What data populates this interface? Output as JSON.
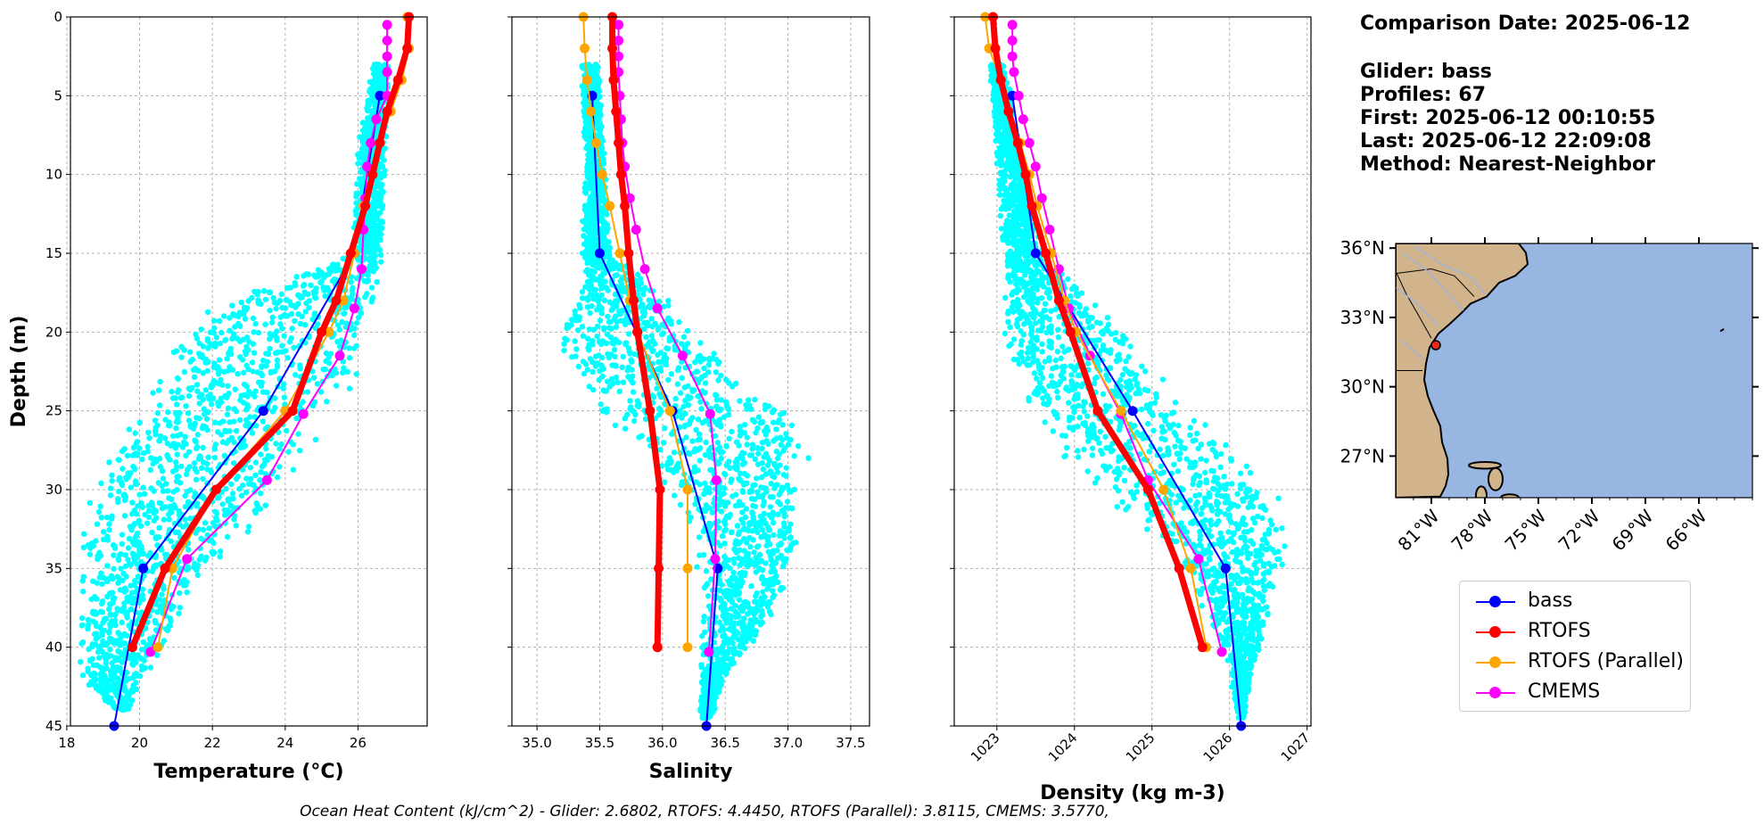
{
  "info": {
    "comparison": "Comparison Date: 2025-06-12",
    "glider": "Glider: bass",
    "profiles": "Profiles: 67",
    "first": "First: 2025-06-12 00:10:55",
    "last": "Last: 2025-06-12 22:09:08",
    "method": "Method: Nearest-Neighbor"
  },
  "footer": "Ocean Heat Content (kJ/cm^2) - Glider: 2.6802,  RTOFS: 4.4450,  RTOFS (Parallel): 3.8115,  CMEMS: 3.5770,",
  "colors": {
    "scatter": "#00ffff",
    "grid": "#b0b0b0",
    "ocean": "#97b6e1",
    "land": "#d2b48c",
    "river": "#97b6e1",
    "glider_marker": "#e8281c"
  },
  "chart_data": [
    {
      "type": "line",
      "xlabel": "Temperature (°C)",
      "ylabel": "Depth (m)",
      "xlim": [
        18.1,
        27.9
      ],
      "ylim": [
        45,
        0
      ],
      "xticks": [
        18,
        20,
        22,
        24,
        26
      ],
      "yticks": [
        0,
        5,
        10,
        15,
        20,
        25,
        30,
        35,
        40,
        45
      ],
      "grid": true,
      "scatter_band": [
        [
          3,
          26.4,
          26.9
        ],
        [
          8,
          26.0,
          26.8
        ],
        [
          15,
          25.8,
          26.7
        ],
        [
          19,
          21.3,
          26.6
        ],
        [
          22,
          20.3,
          26.3
        ],
        [
          25,
          20.0,
          25.6
        ],
        [
          28,
          18.8,
          24.6
        ],
        [
          31,
          18.4,
          24.0
        ],
        [
          34,
          18.3,
          22.6
        ],
        [
          37,
          18.3,
          21.3
        ],
        [
          40,
          18.3,
          20.8
        ],
        [
          42,
          18.3,
          20.2
        ],
        [
          44,
          19.3,
          19.7
        ]
      ],
      "series": [
        {
          "name": "bass",
          "color": "#0000ff",
          "lw": 2,
          "depth": [
            5,
            15,
            25,
            35,
            45
          ],
          "values": [
            26.6,
            25.9,
            23.4,
            20.1,
            19.3
          ]
        },
        {
          "name": "RTOFS",
          "color": "#ff0000",
          "lw": 7,
          "depth": [
            0,
            2,
            4,
            6,
            8,
            10,
            12,
            15,
            18,
            20,
            25,
            30,
            35,
            40
          ],
          "values": [
            27.4,
            27.35,
            27.1,
            26.8,
            26.6,
            26.4,
            26.2,
            25.8,
            25.4,
            25.0,
            24.2,
            22.1,
            20.7,
            19.8
          ]
        },
        {
          "name": "RTOFS (Parallel)",
          "color": "#ffa500",
          "lw": 2,
          "depth": [
            0,
            2,
            4,
            6,
            8,
            10,
            12,
            15,
            18,
            20,
            25,
            30,
            35,
            40
          ],
          "values": [
            27.35,
            27.4,
            27.2,
            26.9,
            26.6,
            26.4,
            26.15,
            25.9,
            25.6,
            25.2,
            24.0,
            22.1,
            20.9,
            20.5
          ]
        },
        {
          "name": "CMEMS",
          "color": "#ff00ff",
          "lw": 2,
          "depth": [
            0.5,
            1.5,
            2.5,
            3.5,
            5,
            6.5,
            8,
            9.5,
            11.5,
            13.5,
            16,
            18.5,
            21.5,
            25.2,
            29.4,
            34.4,
            40.3
          ],
          "values": [
            26.8,
            26.8,
            26.8,
            26.8,
            26.8,
            26.5,
            26.35,
            26.25,
            26.2,
            26.15,
            26.1,
            25.9,
            25.5,
            24.5,
            23.5,
            21.3,
            20.3
          ]
        }
      ]
    },
    {
      "type": "line",
      "xlabel": "Salinity",
      "ylabel": "",
      "xlim": [
        34.8,
        37.65
      ],
      "ylim": [
        45,
        0
      ],
      "xticks": [
        35.0,
        35.5,
        36.0,
        36.5,
        37.0,
        37.5
      ],
      "yticks": [
        0,
        5,
        10,
        15,
        20,
        25,
        30,
        35,
        40,
        45
      ],
      "grid": true,
      "scatter_band": [
        [
          3,
          35.35,
          35.5
        ],
        [
          10,
          35.38,
          35.55
        ],
        [
          15,
          35.35,
          35.6
        ],
        [
          18,
          35.3,
          36.1
        ],
        [
          21,
          35.1,
          36.4
        ],
        [
          24,
          35.3,
          36.9
        ],
        [
          27,
          35.8,
          37.3
        ],
        [
          30,
          36.0,
          37.1
        ],
        [
          33,
          36.2,
          37.2
        ],
        [
          36,
          36.3,
          37.0
        ],
        [
          39,
          36.3,
          36.8
        ],
        [
          42,
          36.3,
          36.5
        ],
        [
          44.5,
          36.3,
          36.4
        ]
      ],
      "series": [
        {
          "name": "bass",
          "color": "#0000ff",
          "lw": 2,
          "depth": [
            5,
            15,
            25,
            35,
            45
          ],
          "values": [
            35.44,
            35.5,
            36.08,
            36.44,
            36.35
          ]
        },
        {
          "name": "RTOFS",
          "color": "#ff0000",
          "lw": 7,
          "depth": [
            0,
            2,
            4,
            6,
            8,
            10,
            12,
            15,
            18,
            20,
            25,
            30,
            35,
            40
          ],
          "values": [
            35.6,
            35.6,
            35.61,
            35.63,
            35.65,
            35.67,
            35.7,
            35.73,
            35.77,
            35.8,
            35.9,
            35.98,
            35.97,
            35.96
          ]
        },
        {
          "name": "RTOFS (Parallel)",
          "color": "#ffa500",
          "lw": 2,
          "depth": [
            0,
            2,
            4,
            6,
            8,
            10,
            12,
            15,
            18,
            20,
            25,
            30,
            35,
            40
          ],
          "values": [
            35.37,
            35.38,
            35.4,
            35.43,
            35.47,
            35.52,
            35.58,
            35.66,
            35.74,
            35.8,
            36.06,
            36.2,
            36.2,
            36.2
          ]
        },
        {
          "name": "CMEMS",
          "color": "#ff00ff",
          "lw": 2,
          "depth": [
            0.5,
            1.5,
            2.5,
            3.5,
            5,
            6.5,
            8,
            9.5,
            11.5,
            13.5,
            16,
            18.5,
            21.5,
            25.2,
            29.4,
            34.4,
            40.3
          ],
          "values": [
            35.65,
            35.65,
            35.65,
            35.65,
            35.66,
            35.67,
            35.68,
            35.7,
            35.74,
            35.79,
            35.86,
            35.96,
            36.16,
            36.38,
            36.43,
            36.42,
            36.37
          ]
        }
      ]
    },
    {
      "type": "line",
      "xlabel": "Density (kg m-3)",
      "ylabel": "",
      "xlim": [
        1022.45,
        1027.05
      ],
      "ylim": [
        45,
        0
      ],
      "xticks": [
        1023,
        1024,
        1025,
        1026,
        1027
      ],
      "yticks": [
        0,
        5,
        10,
        15,
        20,
        25,
        30,
        35,
        40,
        45
      ],
      "grid": true,
      "scatter_band": [
        [
          3,
          1022.9,
          1023.1
        ],
        [
          10,
          1023.0,
          1023.4
        ],
        [
          15,
          1023.05,
          1023.6
        ],
        [
          19,
          1023.05,
          1024.5
        ],
        [
          22,
          1023.1,
          1025.0
        ],
        [
          25,
          1023.3,
          1025.5
        ],
        [
          28,
          1023.8,
          1026.3
        ],
        [
          31,
          1024.5,
          1026.7
        ],
        [
          34,
          1025.2,
          1026.8
        ],
        [
          37,
          1025.6,
          1026.6
        ],
        [
          40,
          1025.9,
          1026.4
        ],
        [
          42,
          1026.0,
          1026.3
        ],
        [
          44.5,
          1026.1,
          1026.2
        ]
      ],
      "series": [
        {
          "name": "bass",
          "color": "#0000ff",
          "lw": 2,
          "depth": [
            5,
            15,
            25,
            35,
            45
          ],
          "values": [
            1023.2,
            1023.5,
            1024.75,
            1025.95,
            1026.15
          ]
        },
        {
          "name": "RTOFS",
          "color": "#ff0000",
          "lw": 7,
          "depth": [
            0,
            2,
            4,
            6,
            8,
            10,
            12,
            15,
            18,
            20,
            25,
            30,
            35,
            40
          ],
          "values": [
            1022.95,
            1022.98,
            1023.05,
            1023.15,
            1023.27,
            1023.37,
            1023.45,
            1023.63,
            1023.8,
            1023.95,
            1024.3,
            1024.95,
            1025.35,
            1025.65
          ]
        },
        {
          "name": "RTOFS (Parallel)",
          "color": "#ffa500",
          "lw": 2,
          "depth": [
            0,
            2,
            4,
            6,
            8,
            10,
            12,
            15,
            18,
            20,
            25,
            30,
            35,
            40
          ],
          "values": [
            1022.85,
            1022.9,
            1023.05,
            1023.15,
            1023.3,
            1023.42,
            1023.52,
            1023.7,
            1023.87,
            1024.02,
            1024.6,
            1025.15,
            1025.5,
            1025.7
          ]
        },
        {
          "name": "CMEMS",
          "color": "#ff00ff",
          "lw": 2,
          "depth": [
            0.5,
            1.5,
            2.5,
            3.5,
            5,
            6.5,
            8,
            9.5,
            11.5,
            13.5,
            16,
            18.5,
            21.5,
            25.2,
            29.4,
            34.4,
            40.3
          ],
          "values": [
            1023.2,
            1023.2,
            1023.2,
            1023.22,
            1023.28,
            1023.34,
            1023.42,
            1023.5,
            1023.58,
            1023.68,
            1023.8,
            1023.93,
            1024.2,
            1024.6,
            1024.95,
            1025.6,
            1025.9
          ]
        }
      ]
    }
  ],
  "map": {
    "lon_range": [
      -83,
      -63
    ],
    "lat_range": [
      25.2,
      36.2
    ],
    "xticks": [
      "81°W",
      "78°W",
      "75°W",
      "72°W",
      "69°W",
      "66°W"
    ],
    "xtick_values": [
      -81,
      -78,
      -75,
      -72,
      -69,
      -66
    ],
    "yticks": [
      "36°N",
      "33°N",
      "30°N",
      "27°N"
    ],
    "ytick_values": [
      36,
      33,
      30,
      27
    ],
    "glider_position": [
      -80.75,
      31.8
    ]
  },
  "legend": [
    {
      "label": "bass",
      "color": "#0000ff"
    },
    {
      "label": "RTOFS",
      "color": "#ff0000"
    },
    {
      "label": "RTOFS (Parallel)",
      "color": "#ffa500"
    },
    {
      "label": "CMEMS",
      "color": "#ff00ff"
    }
  ]
}
